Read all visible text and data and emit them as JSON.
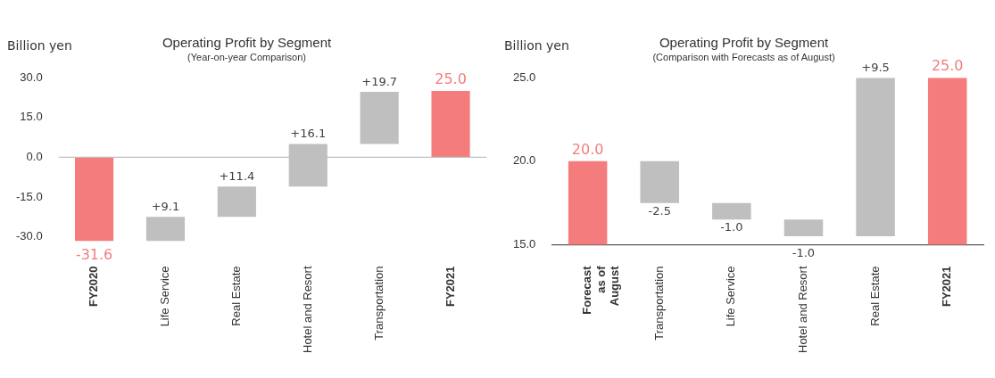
{
  "chart_data": [
    {
      "type": "bar",
      "title": "Operating Profit by Segment",
      "subtitle": "(Year-on-year Comparison)",
      "ylabel": "Billion yen",
      "categories": [
        "FY2020",
        "Life Service",
        "Real Estate",
        "Hotel and Resort",
        "Transportation",
        "FY2021"
      ],
      "values": [
        -31.6,
        9.1,
        11.4,
        16.1,
        19.7,
        25.0
      ],
      "base": [
        null,
        -31.6,
        -22.5,
        -11.1,
        5.0,
        null
      ],
      "colors": [
        "#f47c7c",
        "#bfbfbf",
        "#bfbfbf",
        "#bfbfbf",
        "#bfbfbf",
        "#f47c7c"
      ],
      "value_labels": [
        "-31.6",
        "+9.1",
        "+11.4",
        "+16.1",
        "+19.7",
        "25.0"
      ],
      "ylim": [
        -33,
        30
      ],
      "yticks": [
        {
          "value": -30,
          "label": "-30.0"
        },
        {
          "value": -15,
          "label": "-15.0"
        },
        {
          "value": 0,
          "label": "0.0"
        },
        {
          "value": 15,
          "label": "15.0"
        },
        {
          "value": 30,
          "label": "30.0"
        }
      ],
      "ref_lines": [
        {
          "axis": "y",
          "value": 0,
          "color": "#bfbfbf"
        }
      ],
      "grid": false,
      "legend": false
    },
    {
      "type": "bar",
      "title": "Operating Profit by Segment",
      "subtitle": "(Comparison with Forecasts as of August)",
      "ylabel": "Billion yen",
      "categories": [
        "Forecast as of August",
        "Transportation",
        "Life Service",
        "Hotel and Resort",
        "Real Estate",
        "FY2021"
      ],
      "values": [
        20.0,
        -2.5,
        -1.0,
        -1.0,
        9.5,
        25.0
      ],
      "base": [
        null,
        20.0,
        17.5,
        16.5,
        15.5,
        null
      ],
      "colors": [
        "#f47c7c",
        "#bfbfbf",
        "#bfbfbf",
        "#bfbfbf",
        "#bfbfbf",
        "#f47c7c"
      ],
      "value_labels": [
        "20.0",
        "-2.5",
        "-1.0",
        "-1.0",
        "+9.5",
        "25.0"
      ],
      "ylim": [
        15,
        25
      ],
      "yticks": [
        {
          "value": 15,
          "label": "15.0"
        },
        {
          "value": 20,
          "label": "20.0"
        },
        {
          "value": 25,
          "label": "25.0"
        }
      ],
      "grid": false,
      "legend": false
    }
  ]
}
